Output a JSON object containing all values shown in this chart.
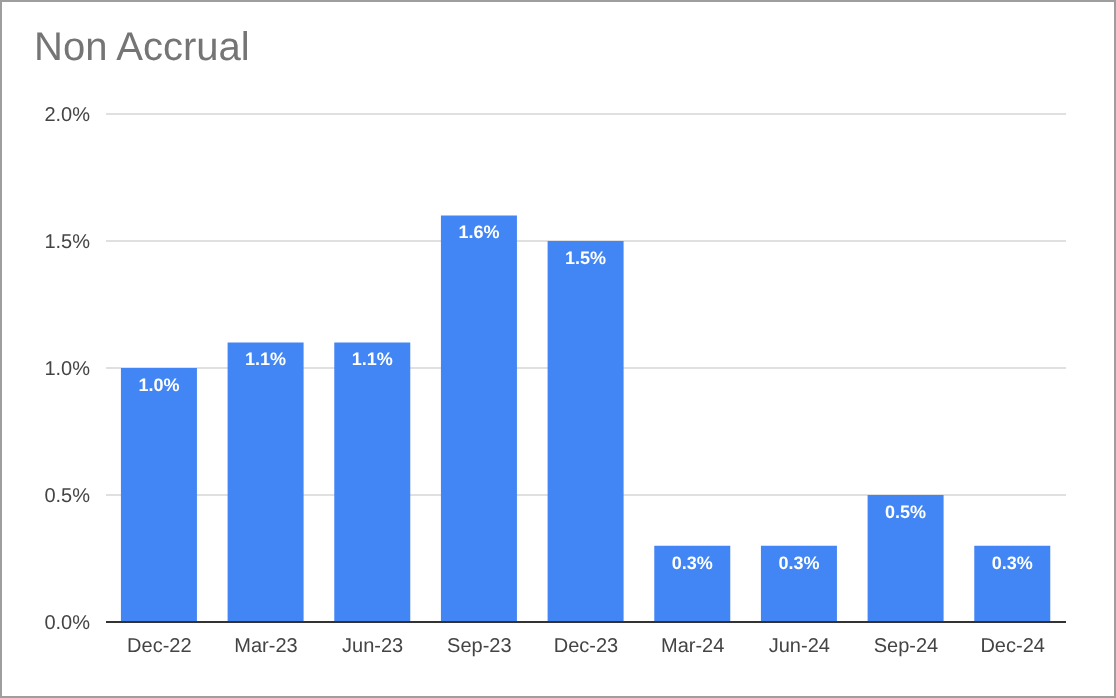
{
  "chart_data": {
    "type": "bar",
    "title": "Non Accrual",
    "categories": [
      "Dec-22",
      "Mar-23",
      "Jun-23",
      "Sep-23",
      "Dec-23",
      "Mar-24",
      "Jun-24",
      "Sep-24",
      "Dec-24"
    ],
    "values": [
      1.0,
      1.1,
      1.1,
      1.6,
      1.5,
      0.3,
      0.3,
      0.5,
      0.3
    ],
    "value_labels": [
      "1.0%",
      "1.1%",
      "1.1%",
      "1.6%",
      "1.5%",
      "0.3%",
      "0.3%",
      "0.5%",
      "0.3%"
    ],
    "color": "#4285f4",
    "ylim": [
      0,
      2
    ],
    "yticks": [
      {
        "value": 0,
        "label": "0.0%"
      },
      {
        "value": 0.5,
        "label": "0.5%"
      },
      {
        "value": 1,
        "label": "1.0%"
      },
      {
        "value": 1.5,
        "label": "1.5%"
      },
      {
        "value": 2,
        "label": "2.0%"
      }
    ],
    "grid": "y",
    "legend": false
  }
}
